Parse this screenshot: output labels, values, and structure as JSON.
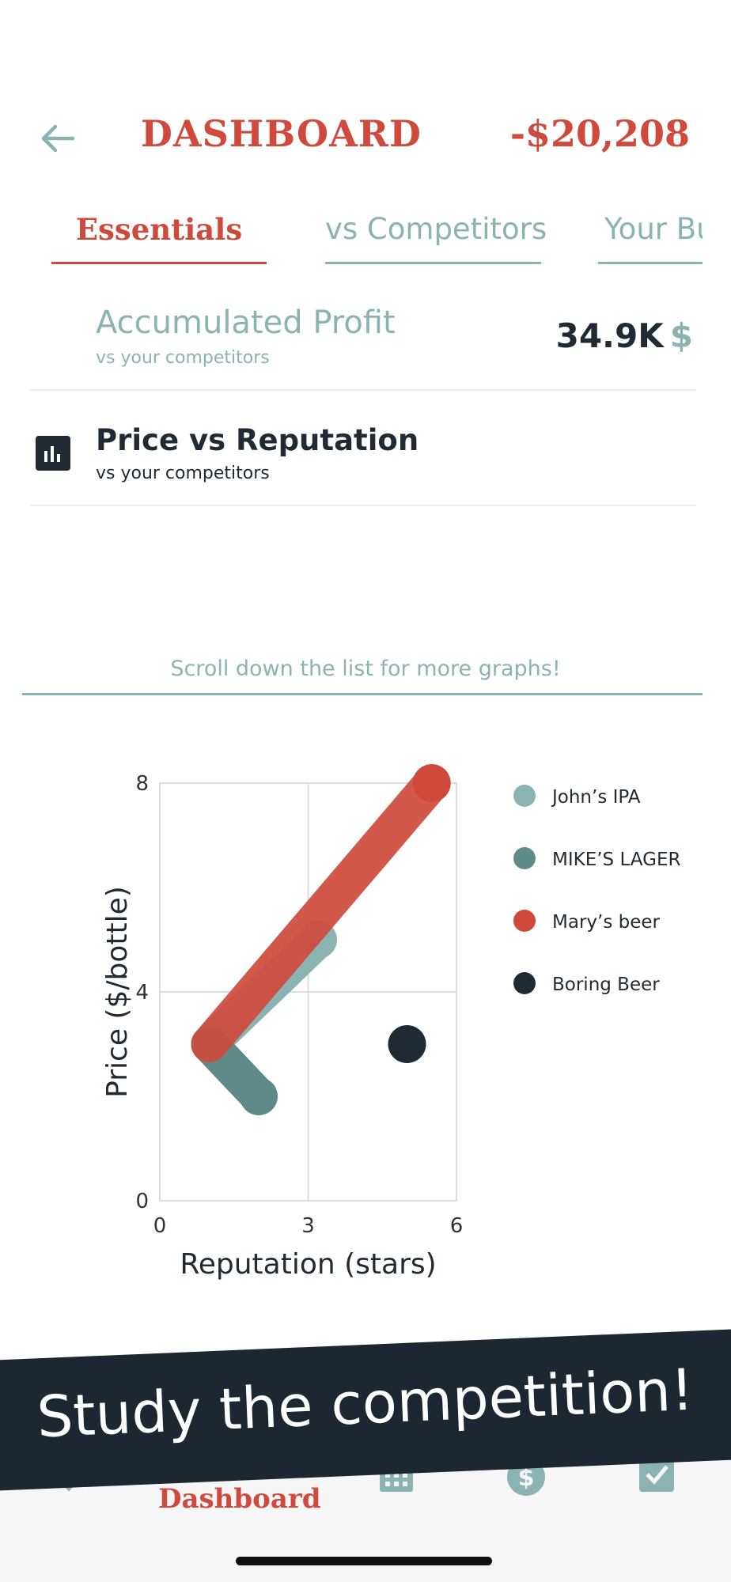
{
  "header": {
    "title": "DASHBOARD",
    "balance": "-$20,208",
    "back_icon": "arrow-left-icon"
  },
  "tabs": [
    {
      "label": "Essentials",
      "active": true
    },
    {
      "label": "vs Competitors",
      "active": false
    },
    {
      "label": "Your Business",
      "active": false
    }
  ],
  "accumulated_profit": {
    "title": "Accumulated Profit",
    "subtitle": "vs your competitors",
    "value": "34.9K",
    "currency": "$"
  },
  "price_vs_reputation": {
    "icon": "bar-chart-icon",
    "title": "Price vs Reputation",
    "subtitle": "vs your competitors"
  },
  "scroll_hint": "Scroll down the list for more graphs!",
  "chart_data": {
    "type": "line",
    "xlabel": "Reputation (stars)",
    "ylabel": "Price ($/bottle)",
    "xlim": [
      0,
      6
    ],
    "ylim": [
      0,
      8
    ],
    "xticks": [
      "0",
      "3",
      "6"
    ],
    "yticks": [
      "0",
      "4",
      "8"
    ],
    "grid": true,
    "legend_position": "right",
    "series": [
      {
        "name": "John’s IPA",
        "color": "#8ab3b1",
        "points": [
          [
            1,
            3
          ],
          [
            3.2,
            5
          ]
        ]
      },
      {
        "name": "MIKE’S LAGER",
        "color": "#5f8a87",
        "points": [
          [
            1,
            3
          ],
          [
            2,
            2
          ]
        ]
      },
      {
        "name": "Mary’s beer",
        "color": "#cf4a3d",
        "points": [
          [
            1,
            3
          ],
          [
            5.5,
            8
          ]
        ]
      },
      {
        "name": "Boring Beer",
        "color": "#1f2a33",
        "points": [
          [
            5,
            3
          ]
        ]
      }
    ]
  },
  "banner": {
    "text": "Study the competition!"
  },
  "bottom_nav": {
    "active_label": "Dashboard",
    "icons": [
      "dashboard-icon",
      "calendar-icon",
      "dollar-icon",
      "checkbox-icon"
    ]
  }
}
